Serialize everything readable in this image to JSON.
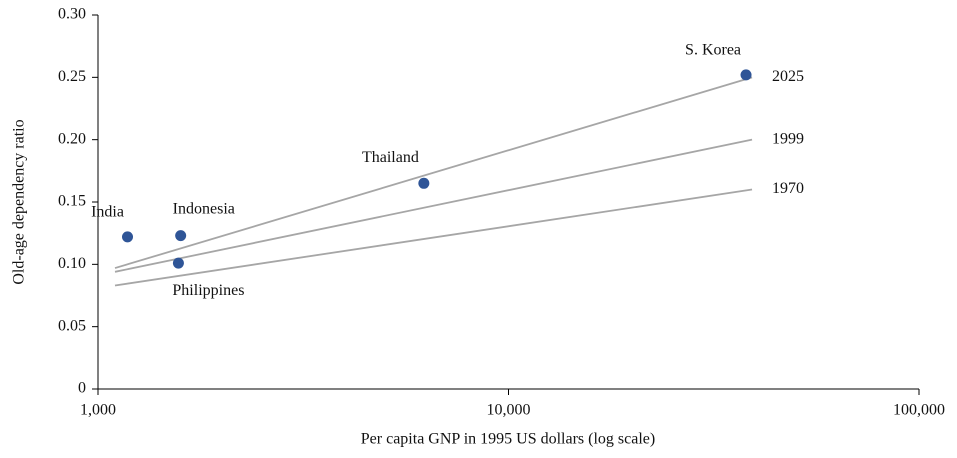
{
  "chart_data": {
    "type": "scatter",
    "xlabel": "Per capita GNP in 1995 US dollars (log scale)",
    "ylabel": "Old-age dependency ratio",
    "xscale": "log",
    "xlim": [
      1000,
      100000
    ],
    "xticks": [
      {
        "value": 1000,
        "label": "1,000"
      },
      {
        "value": 10000,
        "label": "10,000"
      },
      {
        "value": 100000,
        "label": "100,000"
      }
    ],
    "ylim": [
      0,
      0.3
    ],
    "yticks": [
      0,
      0.05,
      {
        "value": 0.1,
        "label": "0.10"
      },
      0.15,
      {
        "value": 0.2,
        "label": "0.20"
      },
      0.25,
      {
        "value": 0.3,
        "label": "0.30"
      }
    ],
    "grid": false,
    "color": "#2f5597",
    "points": {
      "labels": [
        "India",
        "Indonesia",
        "Philippines",
        "Thailand",
        "S. Korea"
      ],
      "x": [
        1180,
        1590,
        1570,
        6220,
        37900
      ],
      "values": [
        0.122,
        0.123,
        0.101,
        0.165,
        0.252
      ]
    },
    "lines": [
      {
        "name": "2025",
        "color": "#a6a6a6",
        "x": [
          1100,
          39200
        ],
        "values": [
          0.097,
          0.25
        ]
      },
      {
        "name": "1999",
        "color": "#a6a6a6",
        "x": [
          1100,
          39200
        ],
        "values": [
          0.094,
          0.2
        ]
      },
      {
        "name": "1970",
        "color": "#a6a6a6",
        "x": [
          1100,
          39200
        ],
        "values": [
          0.083,
          0.16
        ]
      }
    ]
  }
}
